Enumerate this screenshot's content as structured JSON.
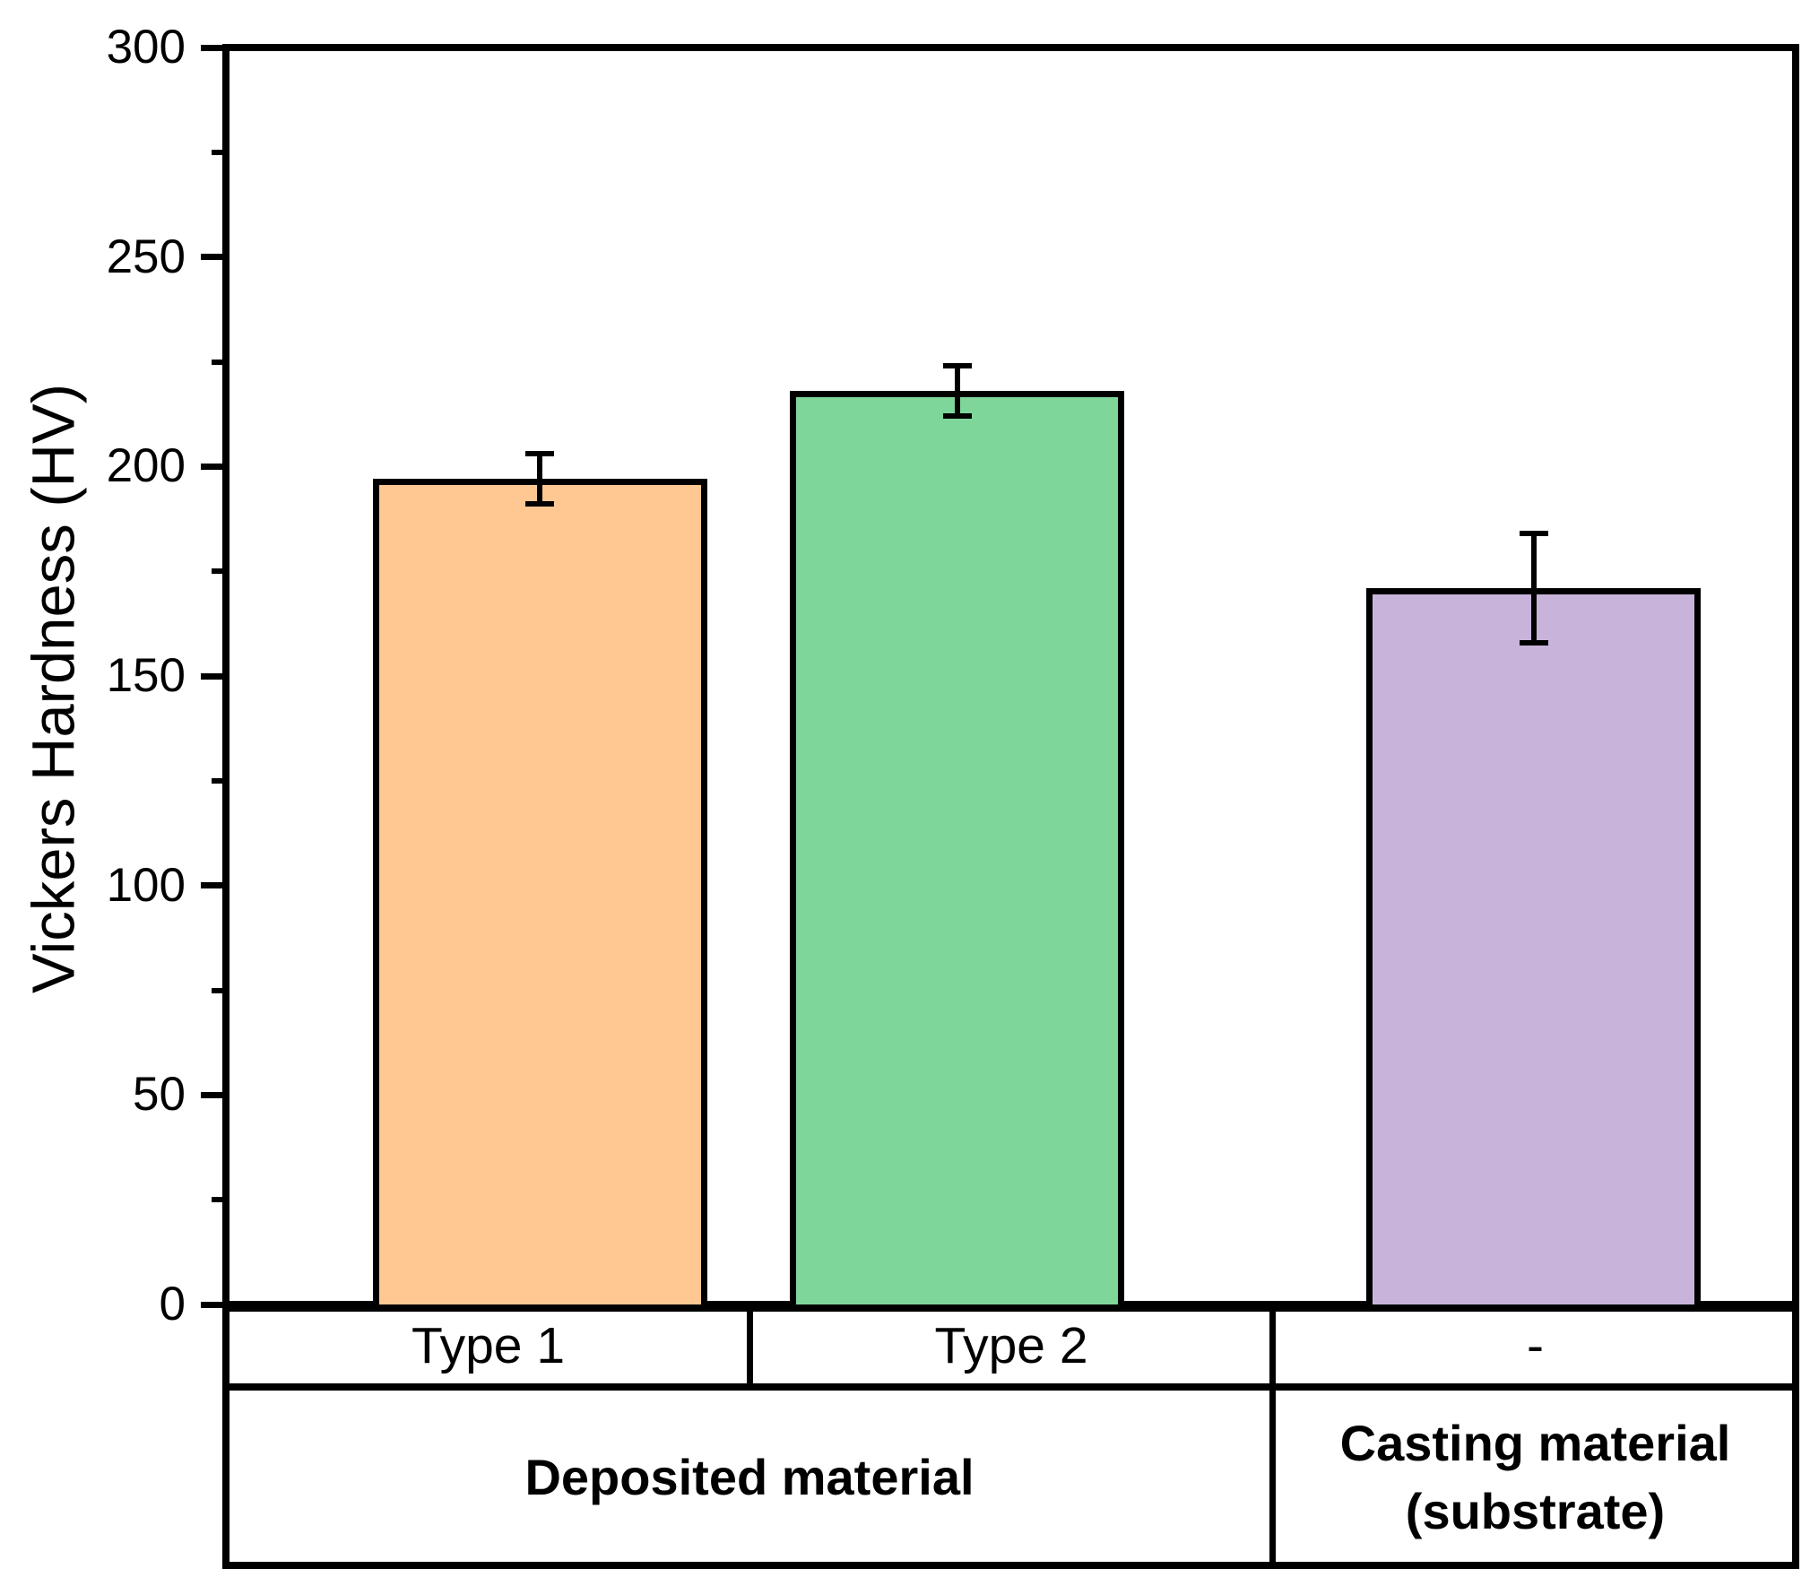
{
  "chart_data": {
    "type": "bar",
    "title": "",
    "xlabel": "",
    "ylabel": "Vickers Hardness (HV)",
    "ylim": [
      0,
      300
    ],
    "ytick_step": 50,
    "minor_tick_step": 25,
    "grid": false,
    "legend_position": "none",
    "categories": [
      "Type 1",
      "Type 2",
      "-"
    ],
    "category_groups": [
      {
        "label_lines": [
          "Deposited material"
        ],
        "spans_categories": [
          "Type 1",
          "Type 2"
        ]
      },
      {
        "label_lines": [
          "Casting material",
          "(substrate)"
        ],
        "spans_categories": [
          "-"
        ]
      }
    ],
    "series": [
      {
        "name": "Vickers Hardness (HV)",
        "values": [
          197,
          218,
          171
        ],
        "errors": [
          6,
          6,
          13
        ],
        "bar_fill_colors": [
          "#FFC893",
          "#7FD69A",
          "#C8B4DA"
        ],
        "bar_edge_color": "#000000"
      }
    ],
    "layout_hints": {
      "bar_centers_frac": [
        0.2,
        0.466,
        0.833
      ],
      "bar_width_frac": 0.213,
      "error_bar_style": "caps-both-ends"
    }
  }
}
